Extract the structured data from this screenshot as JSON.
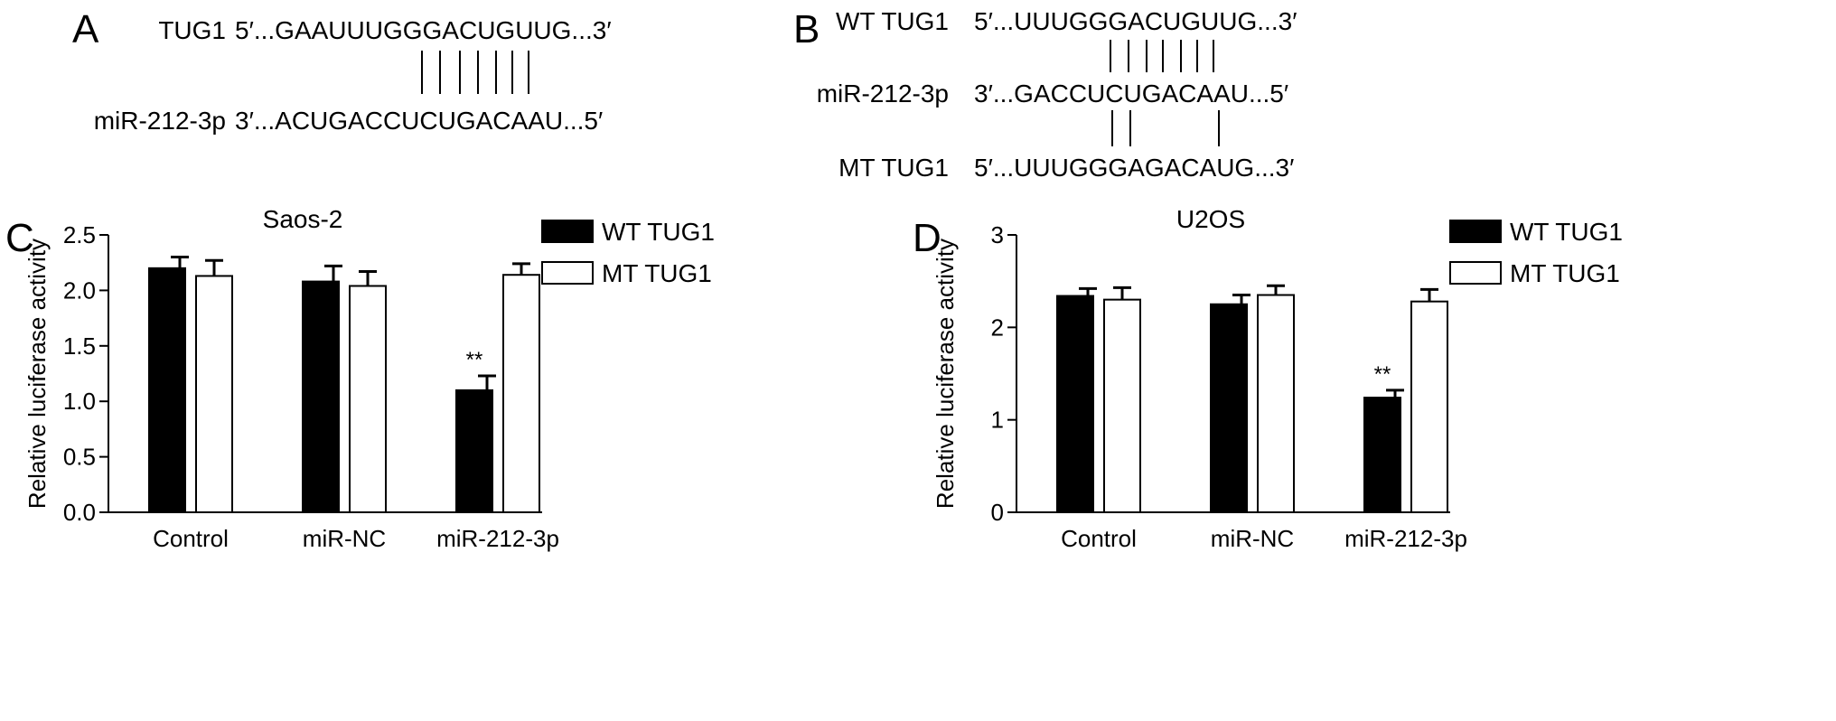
{
  "panel_a": {
    "letter": "A",
    "top_label": "TUG1",
    "top_seq": "5′...GAAUUUGGGACUGUUG...3′",
    "bottom_label": "miR-212-3p",
    "bottom_seq": "3′...ACUGACCUCUGACAAU...5′"
  },
  "panel_b": {
    "letter": "B",
    "top_label": "WT TUG1",
    "top_seq": "5′...UUUGGGACUGUUG...3′",
    "mid_label": "miR-212-3p",
    "mid_seq": "3′...GACCUCUGACAAU...5′",
    "bottom_label": "MT TUG1",
    "bottom_seq": "5′...UUUGGGAGACAUG...3′"
  },
  "chart_data": [
    {
      "panel": "C",
      "type": "bar",
      "title": "Saos-2",
      "ylabel": "Relative luciferase activity",
      "xlabel": "",
      "categories": [
        "Control",
        "miR-NC",
        "miR-212-3p"
      ],
      "ylim": [
        0,
        2.5
      ],
      "yticks": [
        "0.0",
        "0.5",
        "1.0",
        "1.5",
        "2.0",
        "2.5"
      ],
      "series": [
        {
          "name": "WT TUG1",
          "color": "#000000",
          "values": [
            2.2,
            2.08,
            1.1
          ],
          "errors": [
            0.1,
            0.14,
            0.13
          ]
        },
        {
          "name": "MT TUG1",
          "color": "#ffffff",
          "values": [
            2.13,
            2.04,
            2.14
          ],
          "errors": [
            0.14,
            0.13,
            0.1
          ]
        }
      ],
      "annotations": [
        {
          "category": 2,
          "series": 0,
          "text": "**"
        }
      ],
      "legend": "top-right"
    },
    {
      "panel": "D",
      "type": "bar",
      "title": "U2OS",
      "ylabel": "Relative luciferase activity",
      "xlabel": "",
      "categories": [
        "Control",
        "miR-NC",
        "miR-212-3p"
      ],
      "ylim": [
        0,
        3
      ],
      "yticks": [
        "0",
        "1",
        "2",
        "3"
      ],
      "series": [
        {
          "name": "WT TUG1",
          "color": "#000000",
          "values": [
            2.34,
            2.25,
            1.24
          ],
          "errors": [
            0.08,
            0.1,
            0.08
          ]
        },
        {
          "name": "MT TUG1",
          "color": "#ffffff",
          "values": [
            2.3,
            2.35,
            2.28
          ],
          "errors": [
            0.13,
            0.1,
            0.13
          ]
        }
      ],
      "annotations": [
        {
          "category": 2,
          "series": 0,
          "text": "**"
        }
      ],
      "legend": "top-right"
    }
  ]
}
